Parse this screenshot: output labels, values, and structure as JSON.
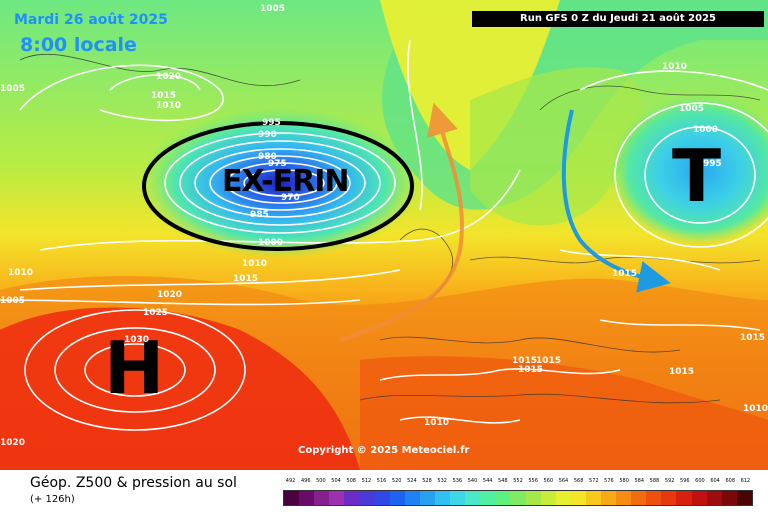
{
  "header": {
    "date": "Mardi 26 août 2025",
    "time": "8:00 locale",
    "run": "Run GFS 0 Z du Jeudi 21 août 2025"
  },
  "map": {
    "storm_label": "EX-ERIN",
    "high_symbol": "H",
    "low_symbol": "T",
    "copyright": "Copyright © 2025 Meteociel.fr",
    "isobars": [
      "1005",
      "1005",
      "1020",
      "1015",
      "1010",
      "995",
      "990",
      "980",
      "975",
      "970",
      "985",
      "1000",
      "1010",
      "1015",
      "1020",
      "1025",
      "1030",
      "1010",
      "1005",
      "1000",
      "995",
      "1015",
      "1015",
      "1015",
      "1015",
      "1015",
      "1010",
      "1005",
      "1010",
      "1020",
      "1010",
      "1015"
    ]
  },
  "footer": {
    "title": "Géop. Z500 & pression au sol",
    "subtitle": "(+ 126h)"
  },
  "legend": {
    "values": [
      "492",
      "496",
      "500",
      "504",
      "508",
      "512",
      "516",
      "520",
      "524",
      "528",
      "532",
      "536",
      "540",
      "544",
      "548",
      "552",
      "556",
      "560",
      "564",
      "568",
      "572",
      "576",
      "580",
      "584",
      "588",
      "592",
      "596",
      "600",
      "604",
      "608",
      "612"
    ],
    "colors": [
      "#4b0040",
      "#6a0a6a",
      "#86208c",
      "#9b30b0",
      "#6a2dc8",
      "#4a3ad8",
      "#2f48e8",
      "#1e62f0",
      "#1e82f2",
      "#28a2f0",
      "#32c0f0",
      "#3cd8e6",
      "#48e8c8",
      "#50f0a0",
      "#5ef080",
      "#80ea60",
      "#a6e84a",
      "#c8ec3a",
      "#e6f030",
      "#f6e426",
      "#f8c81c",
      "#f8aa16",
      "#f88c12",
      "#f46c10",
      "#f0500e",
      "#e8380e",
      "#d8200e",
      "#c01010",
      "#a00c0c",
      "#7a0808",
      "#4a0404"
    ]
  }
}
